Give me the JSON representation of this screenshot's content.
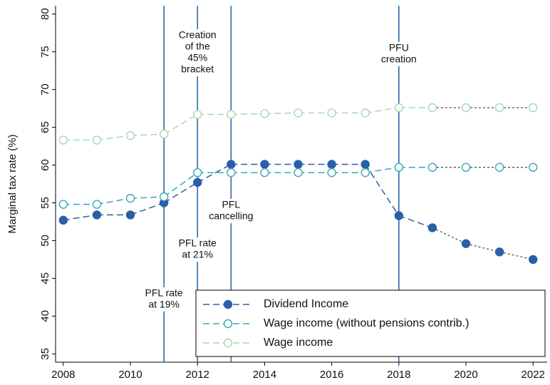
{
  "chart_data": {
    "type": "line",
    "y_label": "Marginal tax rate (%)",
    "x": [
      2008,
      2009,
      2010,
      2011,
      2012,
      2013,
      2014,
      2015,
      2016,
      2017,
      2018,
      2019,
      2020,
      2021,
      2022
    ],
    "series": [
      {
        "name": "Dividend Income",
        "color": "#2a5ea8",
        "marker": "filled",
        "values": [
          52.7,
          53.4,
          53.4,
          55.0,
          57.7,
          60.1,
          60.1,
          60.1,
          60.1,
          60.1,
          53.3,
          51.7,
          49.6,
          48.5,
          47.5
        ]
      },
      {
        "name": "Wage income (without pensions contrib.)",
        "color": "#3aa8b8",
        "marker": "open",
        "values": [
          54.8,
          54.8,
          55.6,
          55.8,
          59.0,
          59.0,
          59.0,
          59.0,
          59.0,
          59.0,
          59.7,
          59.7,
          59.7,
          59.7,
          59.7
        ]
      },
      {
        "name": "Wage income",
        "color": "#a8d8b0",
        "marker": "open",
        "values": [
          63.3,
          63.3,
          63.9,
          64.1,
          66.7,
          66.7,
          66.8,
          66.9,
          66.9,
          66.9,
          67.6,
          67.6,
          67.6,
          67.6,
          67.6
        ]
      }
    ],
    "dotted_from_x": 2019,
    "dotted_color": "#555555",
    "vlines": [
      2011,
      2012,
      2013,
      2018
    ],
    "vline_color": "#2a6aaa",
    "annotations": [
      {
        "x": 2011,
        "lines": [
          "PFL rate",
          "at 19%"
        ],
        "color": "#2a6aaa"
      },
      {
        "x": 2012,
        "lines": [
          "Creation",
          "of the",
          "45%",
          "bracket"
        ],
        "color": "#3aa8b8"
      },
      {
        "x": 2012,
        "lines": [
          "PFL rate",
          "at 21%"
        ],
        "color": "#2a6aaa"
      },
      {
        "x": 2013,
        "lines": [
          "PFL",
          "cancelling"
        ],
        "color": "#2a6aaa"
      },
      {
        "x": 2018,
        "lines": [
          "PFU",
          "creation"
        ],
        "color": "#2a6aaa"
      }
    ],
    "xlim": [
      2007.77,
      2022.42
    ],
    "ylim": [
      33.9,
      81.1
    ],
    "xticks": [
      2008,
      2010,
      2012,
      2014,
      2016,
      2018,
      2020,
      2022
    ],
    "yticks": [
      35,
      40,
      45,
      50,
      55,
      60,
      65,
      70,
      75,
      80
    ],
    "legend": "lower right",
    "grid": false
  }
}
